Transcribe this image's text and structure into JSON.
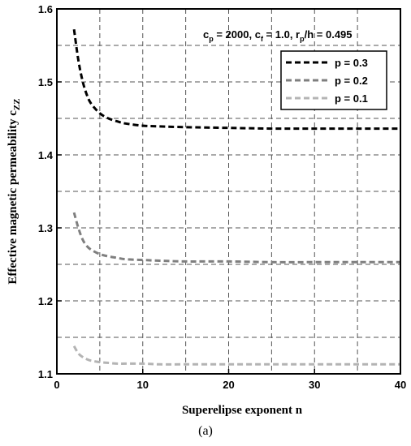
{
  "chart_data": {
    "type": "line",
    "xlabel": "Superelipse exponent n",
    "ylabel_main": "Effective magnetic permeability c",
    "ylabel_sub": "ZZ",
    "xlim": [
      0,
      40
    ],
    "ylim": [
      1.1,
      1.6
    ],
    "xticks": [
      0,
      10,
      20,
      30,
      40
    ],
    "yticks": [
      1.1,
      1.2,
      1.3,
      1.4,
      1.5,
      1.6
    ],
    "grid": true,
    "grid_style": "dashed",
    "x_minor_step": 5,
    "y_minor_step": 0.05,
    "legend_position": "top-right",
    "annotation": {
      "cp_label": "c",
      "cp_sub": "p",
      "cp_value": " = 2000, c",
      "cf_sub": "f",
      "cf_value": " = 1.0, r",
      "rp_sub": "p",
      "rp_value": "/h = 0.495"
    },
    "caption": "(a)",
    "series": [
      {
        "name": "p = 0.3",
        "color": "#000000",
        "x": [
          2,
          2.5,
          3,
          3.5,
          4,
          5,
          6,
          7,
          8,
          10,
          12,
          15,
          20,
          25,
          30,
          35,
          40
        ],
        "values": [
          1.572,
          1.53,
          1.501,
          1.482,
          1.47,
          1.457,
          1.45,
          1.446,
          1.443,
          1.44,
          1.439,
          1.438,
          1.437,
          1.436,
          1.436,
          1.436,
          1.436
        ]
      },
      {
        "name": "p = 0.2",
        "color": "#7f7f7f",
        "x": [
          2,
          2.5,
          3,
          3.5,
          4,
          5,
          6,
          7,
          8,
          10,
          12,
          15,
          20,
          25,
          30,
          35,
          40
        ],
        "values": [
          1.321,
          1.3,
          1.284,
          1.275,
          1.27,
          1.264,
          1.261,
          1.259,
          1.257,
          1.256,
          1.255,
          1.254,
          1.254,
          1.253,
          1.253,
          1.253,
          1.253
        ]
      },
      {
        "name": "p = 0.1",
        "color": "#b4b4b4",
        "x": [
          2,
          2.5,
          3,
          3.5,
          4,
          5,
          6,
          7,
          8,
          10,
          12,
          15,
          20,
          25,
          30,
          35,
          40
        ],
        "values": [
          1.138,
          1.128,
          1.123,
          1.12,
          1.118,
          1.116,
          1.115,
          1.114,
          1.114,
          1.114,
          1.113,
          1.113,
          1.113,
          1.113,
          1.113,
          1.113,
          1.113
        ]
      }
    ]
  }
}
